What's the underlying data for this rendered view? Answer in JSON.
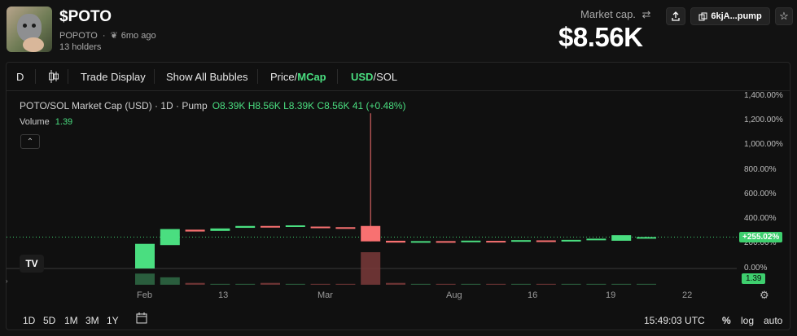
{
  "token": {
    "symbol": "$POTO",
    "name": "POPOTO",
    "age": "6mo ago",
    "holders": "13 holders",
    "market_cap_label": "Market cap.",
    "market_cap_value": "$8.56K",
    "contract_short": "6kjA...pump"
  },
  "toolbar": {
    "interval": "D",
    "trade_display": "Trade Display",
    "show_all_bubbles": "Show All Bubbles",
    "price_label": "Price/",
    "mcap_label": "MCap",
    "usd_label": "USD",
    "sol_label": "/SOL"
  },
  "legend": {
    "pair_title": "POTO/SOL Market Cap (USD) · 1D · Pump",
    "ohlc": "O8.39K H8.56K L8.39K C8.56K 41 (+0.48%)",
    "volume_label": "Volume",
    "volume_value": "1.39"
  },
  "axis": {
    "y_ticks": [
      "1,400.00%",
      "1,200.00%",
      "1,000.00%",
      "800.00%",
      "600.00%",
      "400.00%",
      "200.00%",
      "0.00%"
    ],
    "x_ticks": [
      "Feb",
      "13",
      "Mar",
      "Aug",
      "16",
      "19",
      "22"
    ],
    "last_value_badge": "+255.02%",
    "volume_badge": "1.39"
  },
  "bottom": {
    "ranges": [
      "1D",
      "5D",
      "1M",
      "3M",
      "1Y"
    ],
    "clock": "15:49:03 UTC",
    "percent_toggle": "%",
    "log_toggle": "log",
    "auto_toggle": "auto"
  },
  "colors": {
    "up": "#4ade80",
    "down": "#f87171",
    "accent": "#4ade80",
    "background": "#121212"
  },
  "chart_data": {
    "type": "candlestick",
    "title": "POTO/SOL Market Cap (USD) · 1D · Pump",
    "ylabel": "",
    "xlabel": "",
    "y_unit": "% change",
    "ylim": [
      0,
      1400
    ],
    "candles": [
      {
        "o": 0,
        "h": 200,
        "l": 0,
        "c": 200
      },
      {
        "o": 190,
        "h": 320,
        "l": 190,
        "c": 320
      },
      {
        "o": 315,
        "h": 315,
        "l": 300,
        "c": 300
      },
      {
        "o": 305,
        "h": 325,
        "l": 305,
        "c": 325
      },
      {
        "o": 330,
        "h": 345,
        "l": 330,
        "c": 345
      },
      {
        "o": 345,
        "h": 345,
        "l": 335,
        "c": 335
      },
      {
        "o": 340,
        "h": 350,
        "l": 340,
        "c": 350
      },
      {
        "o": 340,
        "h": 340,
        "l": 332,
        "c": 332
      },
      {
        "o": 335,
        "h": 335,
        "l": 330,
        "c": 330
      },
      {
        "o": 345,
        "h": 1260,
        "l": 220,
        "c": 220
      },
      {
        "o": 225,
        "h": 225,
        "l": 210,
        "c": 210
      },
      {
        "o": 212,
        "h": 222,
        "l": 212,
        "c": 222
      },
      {
        "o": 222,
        "h": 222,
        "l": 215,
        "c": 215
      },
      {
        "o": 216,
        "h": 226,
        "l": 216,
        "c": 226
      },
      {
        "o": 224,
        "h": 224,
        "l": 220,
        "c": 220
      },
      {
        "o": 220,
        "h": 230,
        "l": 220,
        "c": 230
      },
      {
        "o": 228,
        "h": 228,
        "l": 222,
        "c": 222
      },
      {
        "o": 222,
        "h": 232,
        "l": 222,
        "c": 232
      },
      {
        "o": 232,
        "h": 242,
        "l": 232,
        "c": 242
      },
      {
        "o": 225,
        "h": 270,
        "l": 225,
        "c": 270
      },
      {
        "o": 255,
        "h": 258,
        "l": 252,
        "c": 255
      }
    ],
    "volume": [
      0.12,
      0.08,
      0.02,
      0.01,
      0.01,
      0.02,
      0.01,
      0.01,
      0.01,
      0.35,
      0.02,
      0.01,
      0.01,
      0.01,
      0.01,
      0.01,
      0.01,
      0.01,
      0.01,
      0.01,
      0.01
    ],
    "last_value": 255.02,
    "volume_last": 1.39
  }
}
